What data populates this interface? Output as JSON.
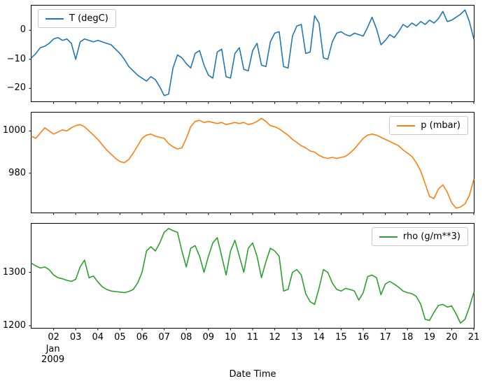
{
  "chart_data": {
    "type": "line",
    "title": "",
    "xlabel": "Date Time",
    "grid": false,
    "x_axis": {
      "month_label": "Jan",
      "year_label": "2009",
      "range": [
        1,
        21
      ],
      "tick_values": [
        2,
        3,
        4,
        5,
        6,
        7,
        8,
        9,
        10,
        11,
        12,
        13,
        14,
        15,
        16,
        17,
        18,
        19,
        20,
        21
      ],
      "tick_labels": [
        "02",
        "03",
        "04",
        "05",
        "06",
        "07",
        "08",
        "09",
        "10",
        "11",
        "12",
        "13",
        "14",
        "15",
        "16",
        "17",
        "18",
        "19",
        "20",
        "21"
      ]
    },
    "x": [
      1,
      1.2,
      1.4,
      1.6,
      1.8,
      2,
      2.2,
      2.4,
      2.6,
      2.8,
      3,
      3.2,
      3.4,
      3.6,
      3.8,
      4,
      4.2,
      4.4,
      4.6,
      4.8,
      5,
      5.2,
      5.4,
      5.6,
      5.8,
      6,
      6.2,
      6.4,
      6.6,
      6.8,
      7,
      7.2,
      7.4,
      7.6,
      7.8,
      8,
      8.2,
      8.4,
      8.6,
      8.8,
      9,
      9.2,
      9.4,
      9.6,
      9.8,
      10,
      10.2,
      10.4,
      10.6,
      10.8,
      11,
      11.2,
      11.4,
      11.6,
      11.8,
      12,
      12.2,
      12.4,
      12.6,
      12.8,
      13,
      13.2,
      13.4,
      13.6,
      13.8,
      14,
      14.2,
      14.4,
      14.6,
      14.8,
      15,
      15.2,
      15.4,
      15.6,
      15.8,
      16,
      16.2,
      16.4,
      16.6,
      16.8,
      17,
      17.2,
      17.4,
      17.6,
      17.8,
      18,
      18.2,
      18.4,
      18.6,
      18.8,
      19,
      19.2,
      19.4,
      19.6,
      19.8,
      20,
      20.2,
      20.4,
      20.6,
      20.8,
      21
    ],
    "subplots": [
      {
        "name": "temperature",
        "legend": "T (degC)",
        "color": "#1f77b4",
        "legend_position": "upper-left",
        "ylim": [
          -24.5,
          8.5
        ],
        "ytick_values": [
          0,
          -10,
          -20
        ],
        "ytick_labels": [
          "0",
          "−10",
          "−20"
        ],
        "y": [
          -9.5,
          -8,
          -6,
          -5.5,
          -4.5,
          -3,
          -2.5,
          -3.5,
          -3,
          -4.5,
          -10,
          -4,
          -3,
          -3.5,
          -4,
          -3.5,
          -4,
          -4.5,
          -5,
          -6.5,
          -8,
          -10,
          -12.5,
          -14,
          -15.5,
          -16.5,
          -17.5,
          -16,
          -17,
          -19.5,
          -22.5,
          -22,
          -13,
          -8.5,
          -9.5,
          -11.5,
          -13,
          -8,
          -7,
          -12,
          -15.5,
          -16.5,
          -7.5,
          -6.5,
          -16,
          -16.5,
          -8,
          -6,
          -13.5,
          -14,
          -7,
          -4.5,
          -12,
          -12.5,
          -4,
          -1,
          -0.5,
          -12.5,
          -13,
          -2,
          1.5,
          2,
          -8,
          -7.5,
          5,
          2.5,
          -9.5,
          -10,
          -4,
          -1,
          -0.5,
          -1.5,
          -2,
          -1,
          -1.5,
          -2,
          1,
          4.5,
          0.5,
          -5,
          -3.5,
          -1.5,
          -2.5,
          -0.5,
          2,
          1,
          2.5,
          1.5,
          3,
          2,
          3.5,
          2.5,
          4,
          6.5,
          3,
          3.5,
          4.5,
          5.5,
          7,
          3,
          -3
        ]
      },
      {
        "name": "pressure",
        "legend": "p (mbar)",
        "color": "#ff7f0e",
        "legend_position": "upper-right",
        "ylim": [
          961.4,
          1008.7
        ],
        "ytick_values": [
          1000,
          980
        ],
        "ytick_labels": [
          "1000",
          "980"
        ],
        "y": [
          997.5,
          996.5,
          999,
          1001.5,
          1000,
          998.5,
          999.5,
          1000.5,
          1000,
          1001.5,
          1002.5,
          1003,
          1002,
          1000,
          998,
          996,
          993.5,
          991,
          989,
          987,
          985.5,
          985,
          986.5,
          989.5,
          993,
          996.5,
          998,
          998.5,
          997.5,
          997,
          996.5,
          994,
          992.5,
          991.5,
          992,
          996.5,
          1002,
          1004.5,
          1005,
          1004,
          1004.5,
          1004,
          1003.5,
          1004,
          1003,
          1003.5,
          1004,
          1003.5,
          1004,
          1003,
          1003.5,
          1004.5,
          1006,
          1004.5,
          1002.5,
          1002,
          1001,
          999.5,
          998,
          996,
          994.5,
          993,
          992,
          990.5,
          990,
          988.5,
          987.5,
          987,
          987.5,
          987,
          987.5,
          988,
          989.5,
          991.5,
          994,
          996.5,
          998,
          998.5,
          998,
          997,
          996,
          995,
          994,
          993,
          991,
          989.5,
          988,
          985,
          981,
          975,
          969,
          968,
          972.5,
          974.5,
          971,
          966,
          963.5,
          964,
          965.5,
          969.5,
          977
        ]
      },
      {
        "name": "density",
        "legend": "rho (g/m**3)",
        "color": "#2ca02c",
        "legend_position": "upper-right",
        "ylim": [
          1196,
          1391
        ],
        "ytick_values": [
          1300,
          1200
        ],
        "ytick_labels": [
          "1300",
          "1200"
        ],
        "y": [
          1317,
          1312,
          1308,
          1310,
          1305,
          1295,
          1290,
          1288,
          1285,
          1283,
          1287,
          1310,
          1323,
          1290,
          1293,
          1282,
          1273,
          1268,
          1265,
          1264,
          1263,
          1262,
          1264,
          1268,
          1280,
          1300,
          1340,
          1348,
          1340,
          1355,
          1375,
          1382,
          1378,
          1375,
          1340,
          1310,
          1345,
          1350,
          1330,
          1300,
          1330,
          1355,
          1365,
          1330,
          1295,
          1340,
          1360,
          1330,
          1300,
          1345,
          1355,
          1330,
          1290,
          1320,
          1345,
          1340,
          1330,
          1265,
          1268,
          1300,
          1305,
          1295,
          1260,
          1245,
          1240,
          1270,
          1305,
          1300,
          1280,
          1268,
          1265,
          1270,
          1268,
          1265,
          1248,
          1262,
          1292,
          1295,
          1290,
          1258,
          1278,
          1283,
          1278,
          1272,
          1265,
          1262,
          1260,
          1255,
          1240,
          1212,
          1210,
          1225,
          1238,
          1240,
          1235,
          1237,
          1222,
          1205,
          1212,
          1235,
          1262
        ]
      }
    ]
  }
}
